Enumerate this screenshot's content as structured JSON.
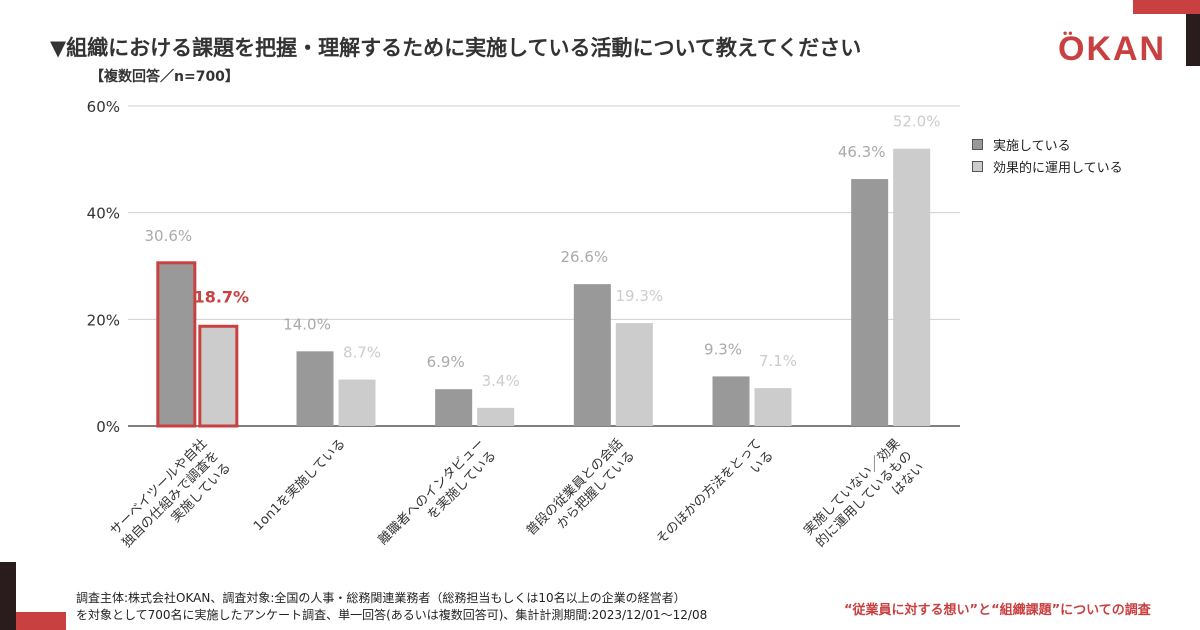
{
  "header": {
    "title": "▼組織における課題を把握・理解するために実施している活動について教えてください",
    "subtitle": "【複数回答／n=700】",
    "logo": "OKAN"
  },
  "colors": {
    "accent": "#c94040",
    "series_implemented": "#999999",
    "series_effective": "#cccccc",
    "highlight_label": "#c94040"
  },
  "chart_data": {
    "type": "bar",
    "categories": [
      "サーベイツールや自社独自の仕組みで調査を実施している",
      "1on1を実施している",
      "離職者へのインタビューを実施している",
      "普段の従業員との会話から把握している",
      "そのほかの方法をとっている",
      "実施していない／効果的に運用しているものはない"
    ],
    "category_label_lines": [
      [
        "サーベイツールや自社",
        "独自の仕組みで調査を",
        "実施している"
      ],
      [
        "1on1を実施している"
      ],
      [
        "離職者へのインタビュー",
        "を実施している"
      ],
      [
        "普段の従業員との会話",
        "から把握している"
      ],
      [
        "そのほかの方法をとって",
        "いる"
      ],
      [
        "実施していない／効果",
        "的に運用しているもの",
        "はない"
      ]
    ],
    "series": [
      {
        "name": "実施している",
        "values": [
          30.6,
          14.0,
          6.9,
          26.6,
          9.3,
          46.3
        ]
      },
      {
        "name": "効果的に運用している",
        "values": [
          18.7,
          8.7,
          3.4,
          19.3,
          7.1,
          52.0
        ]
      }
    ],
    "value_labels": [
      [
        "30.6%",
        "14.0%",
        "6.9%",
        "26.6%",
        "9.3%",
        "46.3%"
      ],
      [
        "18.7%",
        "8.7%",
        "3.4%",
        "19.3%",
        "7.1%",
        "52.0%"
      ]
    ],
    "highlight_category_index": 0,
    "yticks": [
      0,
      20,
      40,
      60
    ],
    "ytick_labels": [
      "0%",
      "20%",
      "40%",
      "60%"
    ],
    "ylim": [
      0,
      60
    ],
    "grid": true,
    "legend_position": "right"
  },
  "footer": {
    "note_line1": "調査主体:株式会社OKAN、調査対象:全国の人事・総務関連業務者（総務担当もしくは10名以上の企業の経営者）",
    "note_line2": "を対象として700名に実施したアンケート調査、単一回答(あるいは複数回答可)、集計計測期間:2023/12/01～12/08",
    "survey_name": "“従業員に対する想い”と“組織課題”についての調査"
  }
}
